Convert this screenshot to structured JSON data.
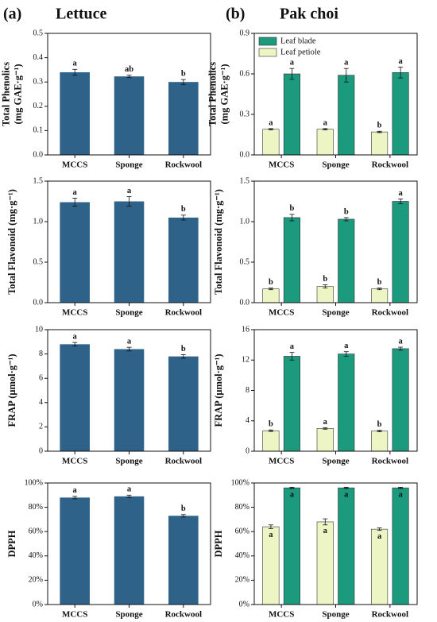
{
  "figure": {
    "panels": [
      {
        "label": "(a)",
        "title": "Lettuce"
      },
      {
        "label": "(b)",
        "title": "Pak choi"
      }
    ]
  },
  "chart_data": [
    {
      "type": "bar",
      "ylabel": [
        "Total Phenolics",
        "(mg GAE·g⁻¹)"
      ],
      "categories": [
        "MCCS",
        "Sponge",
        "Rockwool"
      ],
      "ylim": [
        0,
        0.5
      ],
      "yticks": [
        {
          "value": 0,
          "label": "0.0"
        },
        0.1,
        0.2,
        0.3,
        0.4,
        0.5
      ],
      "series": [
        {
          "color": "#2e6289",
          "values": [
            0.34,
            0.323,
            0.3
          ],
          "errors": [
            0.012,
            0.005,
            0.01
          ],
          "letters": [
            "a",
            "ab",
            "b"
          ]
        }
      ]
    },
    {
      "type": "bar",
      "ylabel": [
        "Total Flavonoid (mg·g⁻¹)"
      ],
      "categories": [
        "MCCS",
        "Sponge",
        "Rockwool"
      ],
      "ylim": [
        0,
        1.5
      ],
      "yticks": [
        {
          "value": 0,
          "label": "0.0"
        },
        0.5,
        {
          "value": 1,
          "label": "1.0"
        },
        1.5
      ],
      "series": [
        {
          "color": "#2e6289",
          "values": [
            1.24,
            1.25,
            1.05
          ],
          "errors": [
            0.05,
            0.06,
            0.03
          ],
          "letters": [
            "a",
            "a",
            "b"
          ]
        }
      ]
    },
    {
      "type": "bar",
      "ylabel": [
        "FRAP  (μmol·g⁻¹)"
      ],
      "categories": [
        "MCCS",
        "Sponge",
        "Rockwool"
      ],
      "ylim": [
        0,
        10
      ],
      "yticks": [
        0,
        2,
        4,
        6,
        8,
        10
      ],
      "series": [
        {
          "color": "#2e6289",
          "values": [
            8.8,
            8.4,
            7.8
          ],
          "errors": [
            0.15,
            0.15,
            0.15
          ],
          "letters": [
            "a",
            "a",
            "b"
          ]
        }
      ]
    },
    {
      "type": "bar",
      "ylabel": [
        "DPPH"
      ],
      "categories": [
        "MCCS",
        "Sponge",
        "Rockwool"
      ],
      "ylim": [
        0,
        100
      ],
      "yticks": [
        {
          "value": 0,
          "label": "0%"
        },
        {
          "value": 20,
          "label": "20%"
        },
        {
          "value": 40,
          "label": "40%"
        },
        {
          "value": 60,
          "label": "60%"
        },
        {
          "value": 80,
          "label": "80%"
        },
        {
          "value": 100,
          "label": "100%"
        }
      ],
      "series": [
        {
          "color": "#2e6289",
          "values": [
            88,
            89,
            73
          ],
          "errors": [
            1,
            1,
            1
          ],
          "letters": [
            "a",
            "a",
            "b"
          ]
        }
      ]
    },
    {
      "type": "bar",
      "ylabel": [
        "Total Phenolics",
        "(mg GAE·g⁻¹)"
      ],
      "categories": [
        "MCCS",
        "Sponge",
        "Rockwool"
      ],
      "ylim": [
        0,
        0.9
      ],
      "yticks": [
        {
          "value": 0,
          "label": "0.0"
        },
        0.3,
        0.6,
        0.9
      ],
      "legend": "upper left",
      "series": [
        {
          "name": "Leaf petiole",
          "color": "#eef5c4",
          "values": [
            0.19,
            0.19,
            0.17
          ],
          "errors": [
            0.005,
            0.005,
            0.005
          ],
          "letters": [
            "a",
            "a",
            "b"
          ]
        },
        {
          "name": "Leaf blade",
          "color": "#1b9a7d",
          "values": [
            0.6,
            0.59,
            0.61
          ],
          "errors": [
            0.04,
            0.05,
            0.04
          ],
          "letters": [
            "a",
            "a",
            "a"
          ]
        }
      ]
    },
    {
      "type": "bar",
      "ylabel": [
        "Total Flavonoid (mg·g⁻¹)"
      ],
      "categories": [
        "MCCS",
        "Sponge",
        "Rockwool"
      ],
      "ylim": [
        0,
        1.5
      ],
      "yticks": [
        {
          "value": 0,
          "label": "0.0"
        },
        0.5,
        {
          "value": 1,
          "label": "1.0"
        },
        1.5
      ],
      "series": [
        {
          "color": "#eef5c4",
          "values": [
            0.17,
            0.2,
            0.17
          ],
          "errors": [
            0.01,
            0.02,
            0.01
          ],
          "letters": [
            "b",
            "b",
            "b"
          ]
        },
        {
          "color": "#1b9a7d",
          "values": [
            1.05,
            1.03,
            1.25
          ],
          "errors": [
            0.04,
            0.02,
            0.03
          ],
          "letters": [
            "b",
            "b",
            "a"
          ]
        }
      ]
    },
    {
      "type": "bar",
      "ylabel": [
        "FRAP  (μmol·g⁻¹)"
      ],
      "categories": [
        "MCCS",
        "Sponge",
        "Rockwool"
      ],
      "ylim": [
        0,
        16
      ],
      "yticks": [
        0,
        4,
        8,
        12,
        16
      ],
      "series": [
        {
          "color": "#eef5c4",
          "values": [
            2.7,
            3.0,
            2.65
          ],
          "errors": [
            0.1,
            0.1,
            0.1
          ],
          "letters": [
            "b",
            "a",
            "b"
          ]
        },
        {
          "color": "#1b9a7d",
          "values": [
            12.5,
            12.8,
            13.5
          ],
          "errors": [
            0.5,
            0.3,
            0.2
          ],
          "letters": [
            "a",
            "a",
            "a"
          ]
        }
      ]
    },
    {
      "type": "bar",
      "ylabel": [
        "DPPH"
      ],
      "categories": [
        "MCCS",
        "Sponge",
        "Rockwool"
      ],
      "letter_position": "inside",
      "ylim": [
        0,
        100
      ],
      "yticks": [
        {
          "value": 0,
          "label": "0%"
        },
        {
          "value": 20,
          "label": "20%"
        },
        {
          "value": 40,
          "label": "40%"
        },
        {
          "value": 60,
          "label": "60%"
        },
        {
          "value": 80,
          "label": "80%"
        },
        {
          "value": 100,
          "label": "100%"
        }
      ],
      "series": [
        {
          "color": "#eef5c4",
          "values": [
            64,
            68,
            62
          ],
          "errors": [
            1.5,
            2.5,
            1
          ],
          "letters": [
            "a",
            "a",
            "a"
          ]
        },
        {
          "color": "#1b9a7d",
          "values": [
            96,
            96,
            96
          ],
          "errors": [
            0.5,
            0.5,
            0.5
          ],
          "letters": [
            "a",
            "a",
            "a"
          ]
        }
      ]
    }
  ]
}
